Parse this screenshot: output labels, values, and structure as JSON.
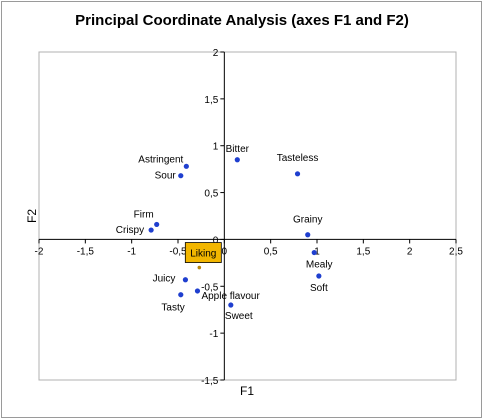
{
  "chart_data": {
    "type": "scatter",
    "title": "Principal Coordinate Analysis (axes F1 and F2)",
    "xlabel": "F1",
    "ylabel": "F2",
    "xlim": [
      -2,
      2.5
    ],
    "ylim": [
      -1.5,
      2
    ],
    "x_ticks": [
      "-2",
      "-1,5",
      "-1",
      "-0,5",
      "0",
      "0,5",
      "1",
      "1,5",
      "2",
      "2,5"
    ],
    "y_ticks": [
      "2",
      "1,5",
      "1",
      "0,5",
      "0",
      "-0,5",
      "-1",
      "-1,5"
    ],
    "grid": false,
    "legend": false,
    "point_color": "#1f3fcf",
    "highlight_color": "#f2b600",
    "points": [
      {
        "name": "Bitter",
        "x": 0.14,
        "y": 0.85
      },
      {
        "name": "Tasteless",
        "x": 0.79,
        "y": 0.7
      },
      {
        "name": "Astringent",
        "x": -0.41,
        "y": 0.78
      },
      {
        "name": "Sour",
        "x": -0.47,
        "y": 0.68
      },
      {
        "name": "Firm",
        "x": -0.73,
        "y": 0.16
      },
      {
        "name": "Crispy",
        "x": -0.79,
        "y": 0.1
      },
      {
        "name": "Grainy",
        "x": 0.9,
        "y": 0.05
      },
      {
        "name": "Mealy",
        "x": 0.97,
        "y": -0.14
      },
      {
        "name": "Soft",
        "x": 1.02,
        "y": -0.39
      },
      {
        "name": "Juicy",
        "x": -0.42,
        "y": -0.43
      },
      {
        "name": "Apple flavour",
        "x": -0.29,
        "y": -0.55
      },
      {
        "name": "Tasty",
        "x": -0.47,
        "y": -0.59
      },
      {
        "name": "Sweet",
        "x": 0.07,
        "y": -0.7
      }
    ],
    "highlight": {
      "name": "Liking",
      "x": -0.27,
      "y": -0.3
    }
  }
}
